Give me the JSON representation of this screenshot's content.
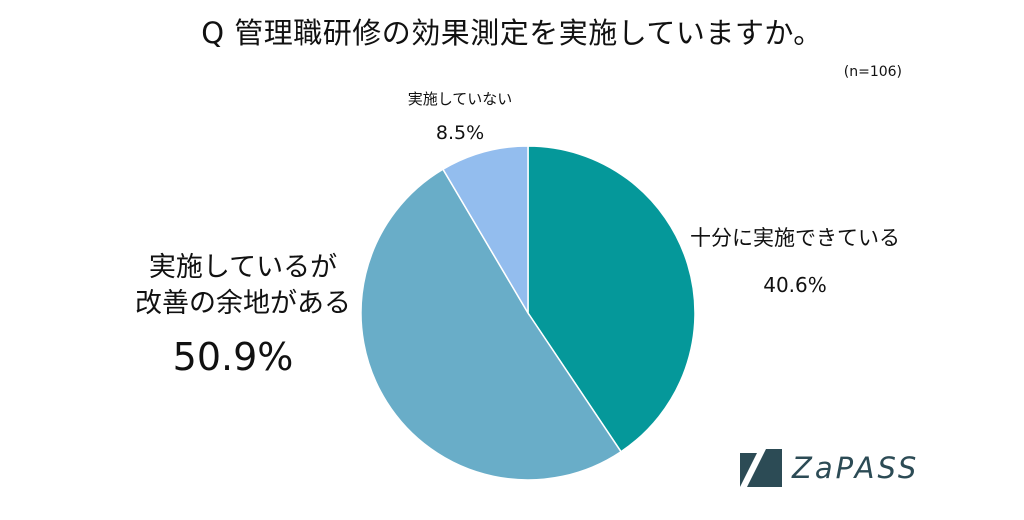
{
  "title": "Q 管理職研修の効果測定を実施していますか。",
  "sample_size": "(n=106)",
  "brand": {
    "name": "ZaPASS",
    "color": "#2c4b55"
  },
  "chart_data": {
    "type": "pie",
    "title": "Q 管理職研修の効果測定を実施していますか。",
    "start": "12 o'clock",
    "direction": "clockwise",
    "slices": [
      {
        "label": "十分に実施できている",
        "value": 40.6,
        "value_label": "40.6%",
        "color": "#05989a"
      },
      {
        "label": "実施しているが改善の余地がある",
        "label_lines": [
          "実施しているが",
          "改善の余地がある"
        ],
        "value": 50.9,
        "value_label": "50.9%",
        "color": "#69adc8"
      },
      {
        "label": "実施していない",
        "value": 8.5,
        "value_label": "8.5%",
        "color": "#93bdee"
      }
    ]
  }
}
